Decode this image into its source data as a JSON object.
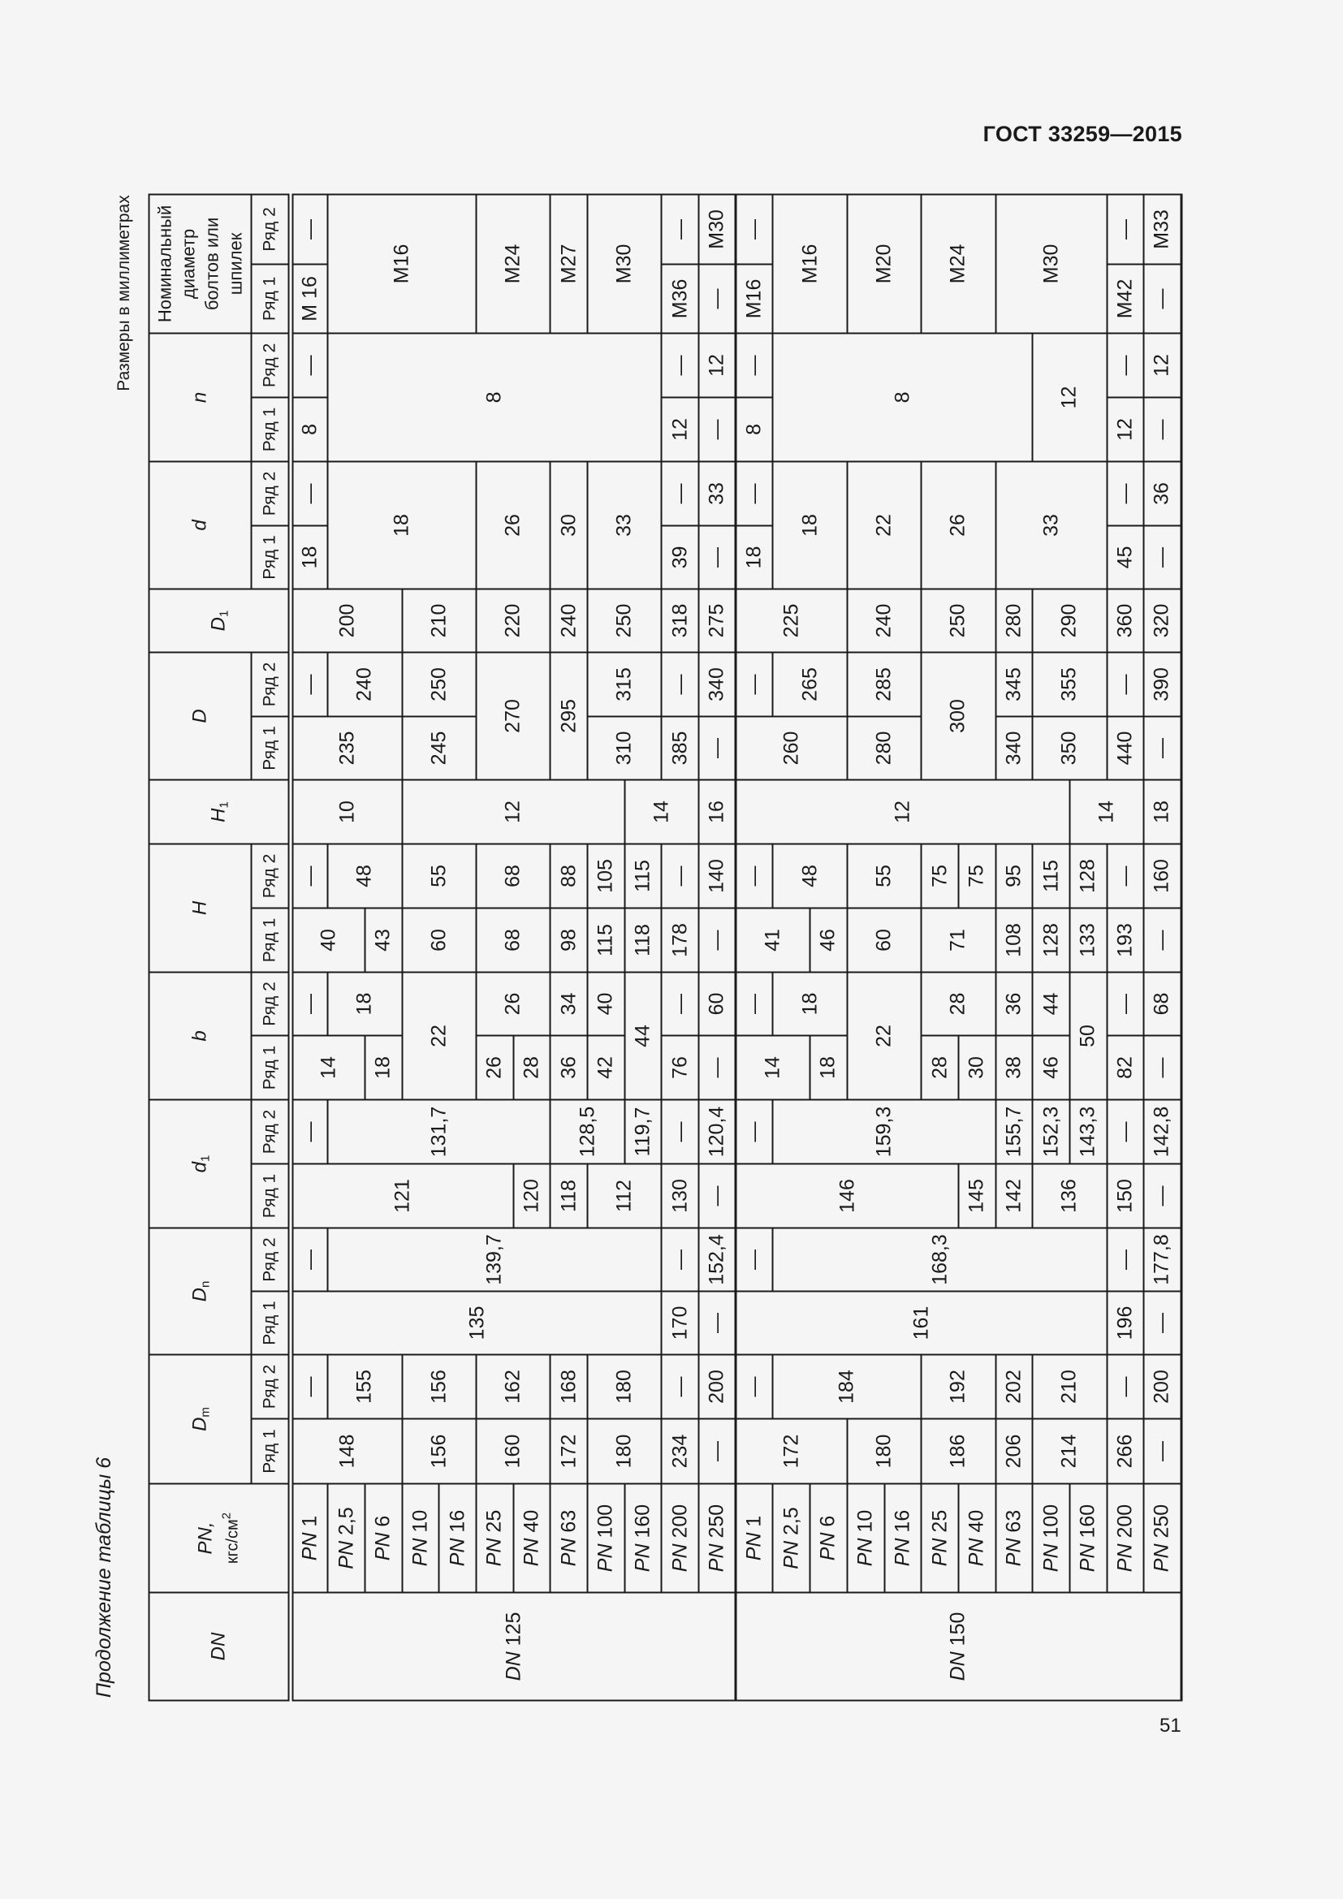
{
  "document": {
    "title": "ГОСТ 33259—2015",
    "caption": "Продолжение таблицы 6",
    "units_note": "Размеры в миллиметрах",
    "page_number": "51"
  },
  "table": {
    "header": {
      "dn": "DN",
      "pn": "PN,",
      "pn_unit": "кгс/см",
      "pn_unit_power": "2",
      "dm": {
        "sym": "D",
        "sub": "m"
      },
      "dn_col": {
        "sym": "D",
        "sub": "n"
      },
      "d1": {
        "sym": "d",
        "sub": "1"
      },
      "b": "b",
      "h": "H",
      "h1": {
        "sym": "H",
        "sub": "1"
      },
      "d_big": "D",
      "d_big1": {
        "sym": "D",
        "sub": "1"
      },
      "d_small": "d",
      "n": "n",
      "bolts": "Номинальный диаметр болтов или шпилек",
      "row1": "Ряд 1",
      "row2": "Ряд 2"
    },
    "dn_prefix": "DN",
    "pn_prefix": "PN",
    "groups": [
      {
        "dn": "125",
        "rows": [
          {
            "pn": "1",
            "cells": [
              [
                "148",
                3
              ],
              "—",
              [
                "135",
                10
              ],
              "—",
              [
                "121",
                6
              ],
              "—",
              [
                "14",
                2
              ],
              "—",
              [
                "40",
                2
              ],
              "—",
              [
                "10",
                3
              ],
              [
                "235",
                3
              ],
              "—",
              [
                "200",
                3
              ],
              "18",
              "—",
              "8",
              "—",
              "M 16",
              "—"
            ]
          },
          {
            "pn": "2,5",
            "cells": [
              [
                "155",
                2
              ],
              [
                "139,7",
                9
              ],
              [
                "131,7",
                6
              ],
              [
                "18",
                2
              ],
              [
                "48",
                2
              ],
              [
                "240",
                2
              ],
              [
                "18",
                4,
                2
              ],
              [
                "8",
                9,
                2
              ],
              [
                "M16",
                4,
                2
              ]
            ]
          },
          {
            "pn": "6",
            "cells": [
              "18",
              "43"
            ]
          },
          {
            "pn": "10",
            "cells": [
              [
                "156",
                2
              ],
              [
                "156",
                2
              ],
              [
                "22",
                2,
                2
              ],
              [
                "60",
                2
              ],
              [
                "55",
                2
              ],
              [
                "12",
                6
              ],
              [
                "245",
                2
              ],
              [
                "250",
                2
              ],
              [
                "210",
                2
              ]
            ]
          },
          {
            "pn": "16",
            "cells": []
          },
          {
            "pn": "25",
            "cells": [
              [
                "160",
                2
              ],
              [
                "162",
                2
              ],
              "26",
              [
                "26",
                2
              ],
              [
                "68",
                2
              ],
              [
                "68",
                2
              ],
              [
                "270",
                2,
                2
              ],
              [
                "220",
                2
              ],
              [
                "26",
                2,
                2
              ],
              [
                "M24",
                2,
                2
              ]
            ]
          },
          {
            "pn": "40",
            "cells": [
              "120",
              "28"
            ]
          },
          {
            "pn": "63",
            "cells": [
              "172",
              "168",
              "118",
              [
                "128,5",
                2
              ],
              "36",
              "34",
              "98",
              "88",
              [
                "295",
                1,
                2
              ],
              "240",
              [
                "30",
                1,
                2
              ],
              [
                "M27",
                1,
                2
              ]
            ]
          },
          {
            "pn": "100",
            "cells": [
              [
                "180",
                2
              ],
              [
                "180",
                2
              ],
              [
                "112",
                2
              ],
              "42",
              "40",
              "115",
              "105",
              [
                "310",
                2
              ],
              [
                "315",
                2
              ],
              [
                "250",
                2
              ],
              [
                "33",
                2,
                2
              ],
              [
                "M30",
                2,
                2
              ]
            ]
          },
          {
            "pn": "160",
            "cells": [
              "119,7",
              [
                "44",
                1,
                2
              ],
              "118",
              "115",
              [
                "14",
                2
              ]
            ]
          },
          {
            "pn": "200",
            "cells": [
              "234",
              "—",
              "170",
              "—",
              "130",
              "—",
              "76",
              "—",
              "178",
              "—",
              "385",
              "—",
              "318",
              "39",
              "—",
              "12",
              "—",
              "M36",
              "—"
            ]
          },
          {
            "pn": "250",
            "cells": [
              "—",
              "200",
              "—",
              "152,4",
              "—",
              "120,4",
              "—",
              "60",
              "—",
              "140",
              "16",
              "—",
              "340",
              "275",
              "—",
              "33",
              "—",
              "12",
              "—",
              "M30"
            ]
          }
        ]
      },
      {
        "dn": "150",
        "rows": [
          {
            "pn": "1",
            "cells": [
              [
                "172",
                3
              ],
              "—",
              [
                "161",
                10
              ],
              "—",
              [
                "146",
                6
              ],
              "—",
              [
                "14",
                2
              ],
              "—",
              [
                "41",
                2
              ],
              "—",
              [
                "12",
                9
              ],
              [
                "260",
                3
              ],
              "—",
              [
                "225",
                3
              ],
              "18",
              "—",
              "8",
              "—",
              "M16",
              "—"
            ]
          },
          {
            "pn": "2,5",
            "cells": [
              [
                "184",
                4
              ],
              [
                "168,3",
                9
              ],
              [
                "159,3",
                6
              ],
              [
                "18",
                2
              ],
              [
                "48",
                2
              ],
              [
                "265",
                2
              ],
              [
                "18",
                2,
                2
              ],
              [
                "8",
                7,
                2
              ],
              [
                "M16",
                2,
                2
              ]
            ]
          },
          {
            "pn": "6",
            "cells": [
              "18",
              "46"
            ]
          },
          {
            "pn": "10",
            "cells": [
              [
                "180",
                2
              ],
              [
                "22",
                2,
                2
              ],
              [
                "60",
                2
              ],
              [
                "55",
                2
              ],
              [
                "280",
                2
              ],
              [
                "285",
                2
              ],
              [
                "240",
                2
              ],
              [
                "22",
                2,
                2
              ],
              [
                "M20",
                2,
                2
              ]
            ]
          },
          {
            "pn": "16",
            "cells": []
          },
          {
            "pn": "25",
            "cells": [
              [
                "186",
                2
              ],
              [
                "192",
                2
              ],
              "28",
              [
                "28",
                2
              ],
              [
                "71",
                2
              ],
              "75",
              [
                "300",
                2,
                2
              ],
              [
                "250",
                2
              ],
              [
                "26",
                2,
                2
              ],
              [
                "M24",
                2,
                2
              ]
            ]
          },
          {
            "pn": "40",
            "cells": [
              "145",
              "30",
              "75"
            ]
          },
          {
            "pn": "63",
            "cells": [
              "206",
              "202",
              "142",
              "155,7",
              "38",
              "36",
              "108",
              "95",
              "340",
              "345",
              "280",
              [
                "33",
                3,
                2
              ],
              [
                "M30",
                3,
                2
              ]
            ]
          },
          {
            "pn": "100",
            "cells": [
              [
                "214",
                2
              ],
              [
                "210",
                2
              ],
              [
                "136",
                2
              ],
              "152,3",
              "46",
              "44",
              "128",
              "115",
              [
                "350",
                2
              ],
              [
                "355",
                2
              ],
              [
                "290",
                2
              ],
              [
                "12",
                2,
                2
              ]
            ]
          },
          {
            "pn": "160",
            "cells": [
              "143,3",
              [
                "50",
                1,
                2
              ],
              "133",
              "128",
              [
                "14",
                2
              ]
            ]
          },
          {
            "pn": "200",
            "cells": [
              "266",
              "—",
              "196",
              "—",
              "150",
              "—",
              "82",
              "—",
              "193",
              "—",
              "440",
              "—",
              "360",
              "45",
              "—",
              "12",
              "—",
              "M42",
              "—"
            ]
          },
          {
            "pn": "250",
            "cells": [
              "—",
              "200",
              "—",
              "177,8",
              "—",
              "142,8",
              "—",
              "68",
              "—",
              "160",
              "18",
              "—",
              "390",
              "320",
              "—",
              "36",
              "—",
              "12",
              "—",
              "M33"
            ]
          }
        ]
      }
    ]
  }
}
